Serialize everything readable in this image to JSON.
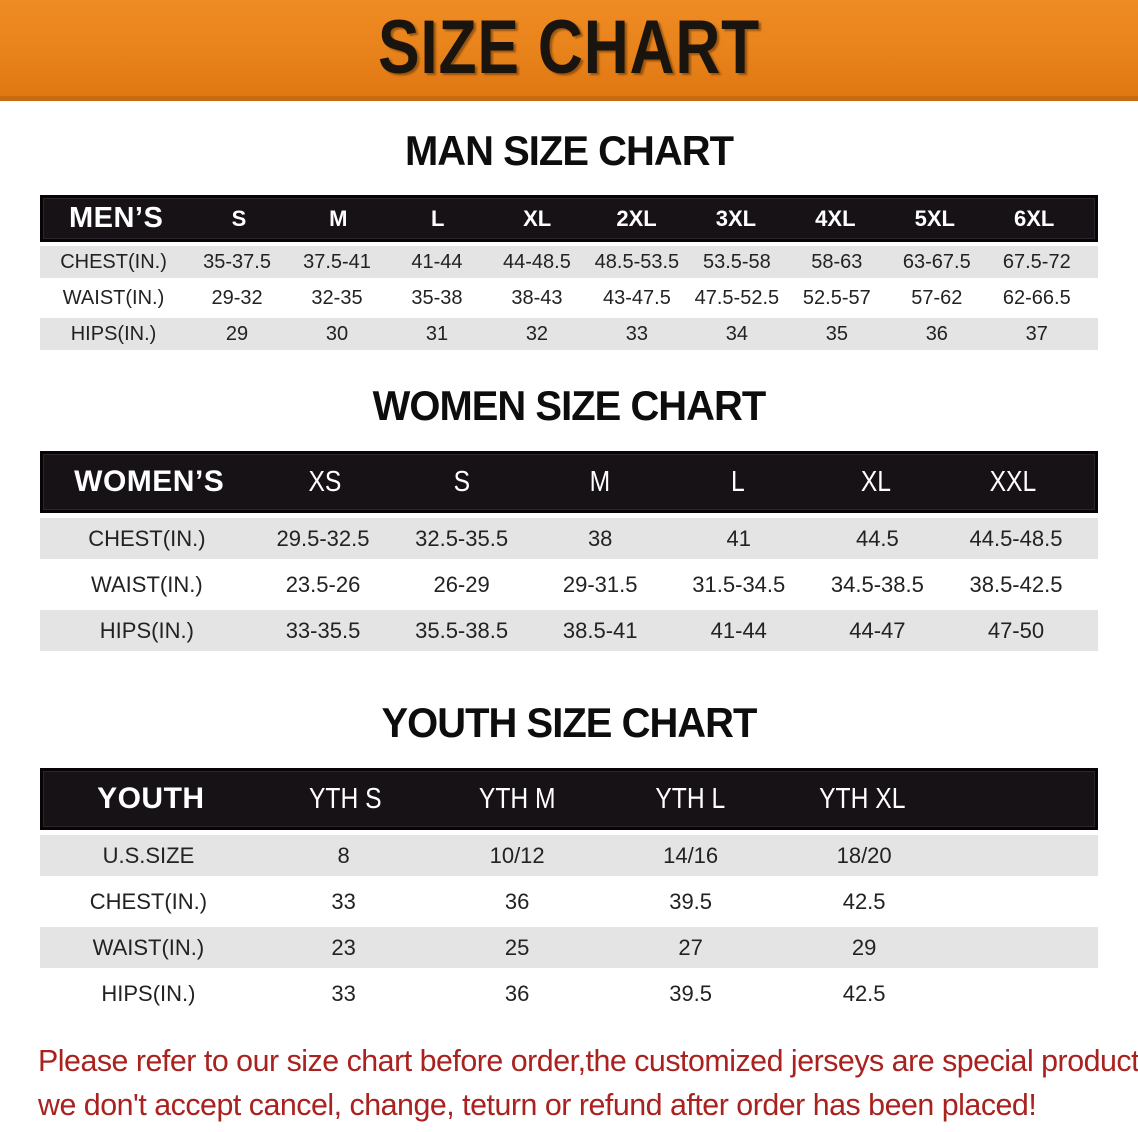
{
  "banner": {
    "title": "SIZE CHART"
  },
  "sections": [
    {
      "heading": "MAN SIZE CHART",
      "table": {
        "label": "MEN’S",
        "columns": [
          "S",
          "M",
          "L",
          "XL",
          "2XL",
          "3XL",
          "4XL",
          "5XL",
          "6XL"
        ],
        "rows": [
          {
            "label": "CHEST(IN.)",
            "values": [
              "35-37.5",
              "37.5-41",
              "41-44",
              "44-48.5",
              "48.5-53.5",
              "53.5-58",
              "58-63",
              "63-67.5",
              "67.5-72"
            ]
          },
          {
            "label": "WAIST(IN.)",
            "values": [
              "29-32",
              "32-35",
              "35-38",
              "38-43",
              "43-47.5",
              "47.5-52.5",
              "52.5-57",
              "57-62",
              "62-66.5"
            ]
          },
          {
            "label": "HIPS(IN.)",
            "values": [
              "29",
              "30",
              "31",
              "32",
              "33",
              "34",
              "35",
              "36",
              "37"
            ]
          }
        ]
      }
    },
    {
      "heading": "WOMEN SIZE CHART",
      "table": {
        "label": "WOMEN’S",
        "columns": [
          "XS",
          "S",
          "M",
          "L",
          "XL",
          "XXL"
        ],
        "rows": [
          {
            "label": "CHEST(IN.)",
            "values": [
              "29.5-32.5",
              "32.5-35.5",
              "38",
              "41",
              "44.5",
              "44.5-48.5"
            ]
          },
          {
            "label": "WAIST(IN.)",
            "values": [
              "23.5-26",
              "26-29",
              "29-31.5",
              "31.5-34.5",
              "34.5-38.5",
              "38.5-42.5"
            ]
          },
          {
            "label": "HIPS(IN.)",
            "values": [
              "33-35.5",
              "35.5-38.5",
              "38.5-41",
              "41-44",
              "44-47",
              "47-50"
            ]
          }
        ]
      }
    },
    {
      "heading": "YOUTH SIZE CHART",
      "table": {
        "label": "YOUTH",
        "columns": [
          "YTH S",
          "YTH M",
          "YTH L",
          "YTH XL"
        ],
        "rows": [
          {
            "label": "U.S.SIZE",
            "values": [
              "8",
              "10/12",
              "14/16",
              "18/20"
            ]
          },
          {
            "label": "CHEST(IN.)",
            "values": [
              "33",
              "36",
              "39.5",
              "42.5"
            ]
          },
          {
            "label": "WAIST(IN.)",
            "values": [
              "23",
              "25",
              "27",
              "29"
            ]
          },
          {
            "label": "HIPS(IN.)",
            "values": [
              "33",
              "36",
              "39.5",
              "42.5"
            ]
          }
        ]
      }
    }
  ],
  "footer": {
    "line1": "Please refer to our size chart before order,the customized jerseys are special products,",
    "line2": "we don't accept cancel, change, teturn or refund after order has been placed!"
  },
  "colors": {
    "banner_bg": "#E8821B",
    "banner_border": "#C86A10",
    "header_bar": "#171216",
    "row_stripe": "#E4E4E5",
    "text_dark": "#222222",
    "notice_red": "#A9221F"
  }
}
